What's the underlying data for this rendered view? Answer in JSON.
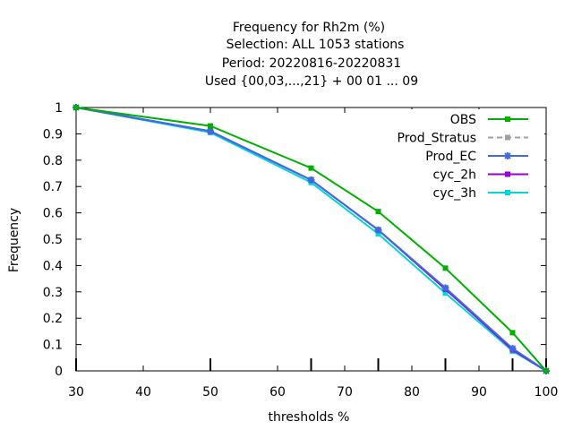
{
  "chart_data": {
    "type": "line",
    "title_lines": [
      "Frequency  for Rh2m (%)",
      "Selection: ALL    1053 stations",
      "Period: 20220816-20220831",
      "Used {00,03,...,21} + 00 01 ... 09"
    ],
    "xlabel": "thresholds %",
    "ylabel": "Frequency",
    "xlim": [
      30,
      100
    ],
    "ylim": [
      0,
      1
    ],
    "xticks": [
      30,
      40,
      50,
      60,
      70,
      80,
      90,
      100
    ],
    "yticks": [
      0,
      0.1,
      0.2,
      0.3,
      0.4,
      0.5,
      0.6,
      0.7,
      0.8,
      0.9,
      1
    ],
    "ytick_labels": [
      "0",
      "0.1",
      "0.2",
      "0.3",
      "0.4",
      "0.5",
      "0.6",
      "0.7",
      "0.8",
      "0.9",
      "1"
    ],
    "x": [
      30,
      50,
      65,
      75,
      85,
      95,
      100
    ],
    "legend_position": "top-right",
    "series": [
      {
        "name": "OBS",
        "color": "#00b000",
        "values": [
          1.0,
          0.93,
          0.77,
          0.605,
          0.39,
          0.145,
          0.0
        ],
        "dashed": false,
        "marker": "square"
      },
      {
        "name": "Prod_Stratus",
        "color": "#a0a0a0",
        "values": [
          null,
          null,
          null,
          null,
          null,
          null,
          null
        ],
        "dashed": true,
        "marker": "square"
      },
      {
        "name": "Prod_EC",
        "color": "#4169e1",
        "values": [
          1.0,
          0.91,
          0.725,
          0.535,
          0.315,
          0.085,
          0.0
        ],
        "dashed": false,
        "marker": "star"
      },
      {
        "name": "cyc_2h",
        "color": "#9400d3",
        "values": [
          1.0,
          0.91,
          0.725,
          0.535,
          0.31,
          0.08,
          0.0
        ],
        "dashed": false,
        "marker": "square"
      },
      {
        "name": "cyc_3h",
        "color": "#00d8d8",
        "values": [
          1.0,
          0.905,
          0.715,
          0.52,
          0.295,
          0.075,
          0.0
        ],
        "dashed": false,
        "marker": "square"
      }
    ]
  }
}
